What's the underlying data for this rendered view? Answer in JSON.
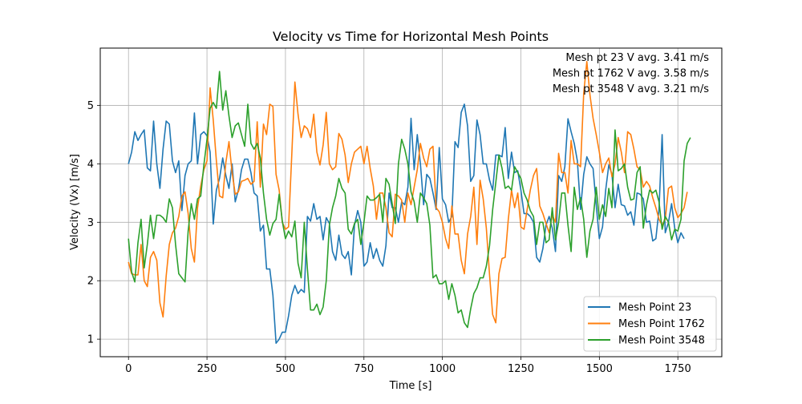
{
  "chart_data": {
    "type": "line",
    "title": "Velocity vs Time for Horizontal Mesh Points",
    "xlabel": "Time [s]",
    "ylabel": "Velocity (Vx) [m/s]",
    "xlim": [
      -90,
      1890
    ],
    "ylim": [
      0.7,
      5.98
    ],
    "xticks": [
      0,
      250,
      500,
      750,
      1000,
      1250,
      1500,
      1750
    ],
    "yticks": [
      1,
      2,
      3,
      4,
      5
    ],
    "grid": true,
    "legend_position": "lower-right",
    "annotations": [
      "Mesh pt 23 V avg. 3.41 m/s",
      "Mesh pt 1762 V avg. 3.58 m/s",
      "Mesh pt 3548 V avg. 3.21 m/s"
    ],
    "x_start": 0,
    "x_step": 10,
    "series": [
      {
        "name": "Mesh Point 23",
        "color": "#1f77b4",
        "values": [
          4.0,
          4.2,
          4.55,
          4.4,
          4.5,
          4.58,
          3.93,
          3.88,
          4.73,
          4.0,
          3.58,
          4.25,
          4.73,
          4.68,
          4.05,
          3.85,
          4.05,
          3.2,
          3.8,
          4.0,
          4.05,
          4.87,
          4.0,
          4.5,
          4.55,
          4.48,
          4.2,
          2.97,
          3.55,
          3.75,
          4.1,
          3.8,
          3.58,
          4.0,
          3.35,
          3.55,
          3.9,
          4.08,
          4.08,
          3.85,
          3.5,
          3.45,
          2.85,
          2.95,
          2.2,
          2.2,
          1.75,
          0.93,
          1.0,
          1.12,
          1.12,
          1.4,
          1.75,
          1.92,
          1.78,
          1.85,
          1.8,
          3.1,
          3.02,
          3.32,
          3.05,
          3.1,
          2.7,
          3.08,
          2.98,
          2.5,
          2.35,
          2.78,
          2.45,
          2.38,
          2.5,
          2.1,
          2.95,
          3.2,
          3.0,
          2.25,
          2.32,
          2.65,
          2.38,
          2.55,
          2.35,
          2.25,
          2.6,
          3.5,
          3.25,
          3.25,
          3.0,
          3.35,
          3.3,
          3.6,
          4.78,
          3.9,
          4.5,
          4.0,
          3.3,
          3.82,
          3.75,
          3.5,
          3.22,
          4.28,
          3.4,
          3.3,
          3.0,
          3.1,
          4.38,
          4.28,
          4.88,
          5.02,
          4.65,
          3.7,
          3.8,
          4.75,
          4.5,
          4.0,
          4.0,
          3.72,
          3.55,
          4.15,
          4.15,
          4.12,
          4.62,
          3.75,
          4.2,
          3.85,
          3.88,
          3.55,
          3.15,
          3.15,
          3.1,
          3.0,
          2.4,
          2.32,
          2.55,
          2.95,
          3.1,
          2.9,
          2.5,
          3.8,
          3.7,
          3.95,
          4.77,
          4.55,
          4.35,
          4.05,
          3.22,
          3.82,
          4.12,
          4.0,
          3.92,
          3.3,
          2.72,
          2.92,
          3.55,
          3.98,
          3.82,
          3.25,
          3.65,
          3.3,
          3.28,
          3.12,
          3.18,
          2.95,
          3.5,
          3.48,
          3.4,
          3.0,
          3.02,
          2.68,
          2.72,
          3.22,
          4.5,
          2.82,
          3.0,
          3.32,
          2.9,
          2.65,
          2.82,
          2.72
        ]
      },
      {
        "name": "Mesh Point 1762",
        "color": "#ff7f0e",
        "values": [
          2.32,
          2.12,
          2.1,
          2.1,
          2.62,
          2.0,
          1.9,
          2.4,
          2.5,
          2.35,
          1.62,
          1.38,
          2.08,
          2.62,
          2.82,
          2.9,
          3.1,
          3.45,
          3.52,
          3.15,
          2.55,
          2.32,
          3.25,
          3.62,
          3.9,
          4.05,
          5.3,
          4.75,
          4.05,
          3.45,
          3.42,
          4.02,
          4.38,
          3.85,
          3.48,
          3.52,
          3.7,
          3.72,
          3.75,
          3.65,
          3.7,
          4.72,
          3.6,
          4.68,
          4.5,
          5.02,
          4.98,
          3.82,
          3.55,
          3.0,
          2.88,
          2.92,
          4.15,
          5.4,
          4.85,
          4.45,
          4.65,
          4.6,
          4.45,
          4.85,
          4.2,
          3.98,
          4.32,
          4.88,
          4.0,
          3.9,
          3.95,
          4.52,
          4.42,
          4.15,
          3.68,
          4.0,
          4.2,
          4.25,
          4.3,
          4.0,
          4.3,
          3.92,
          3.62,
          3.05,
          3.5,
          3.5,
          3.25,
          2.82,
          2.75,
          3.48,
          3.45,
          3.38,
          3.0,
          3.5,
          3.3,
          3.6,
          3.9,
          4.35,
          4.1,
          3.95,
          4.25,
          4.3,
          3.25,
          3.18,
          3.0,
          2.72,
          2.55,
          3.28,
          2.8,
          2.8,
          2.35,
          2.12,
          2.8,
          3.1,
          3.6,
          2.62,
          3.72,
          3.4,
          2.9,
          2.1,
          1.42,
          1.28,
          2.12,
          2.38,
          2.4,
          3.05,
          3.55,
          3.25,
          3.5,
          2.92,
          2.88,
          3.22,
          3.55,
          3.8,
          3.92,
          3.28,
          3.15,
          2.98,
          2.82,
          3.12,
          3.0,
          4.18,
          3.85,
          3.85,
          3.5,
          4.4,
          4.0,
          4.0,
          3.95,
          5.2,
          5.75,
          5.18,
          4.78,
          4.5,
          4.2,
          3.85,
          4.0,
          4.1,
          3.78,
          4.0,
          4.45,
          4.2,
          3.85,
          4.55,
          4.5,
          4.25,
          3.95,
          3.9,
          3.6,
          3.7,
          3.62,
          3.42,
          3.25,
          3.05,
          2.95,
          3.05,
          3.58,
          3.62,
          3.25,
          3.08,
          3.15,
          3.25,
          3.52
        ]
      },
      {
        "name": "Mesh Point 3548",
        "color": "#2ca02c",
        "values": [
          2.72,
          2.15,
          1.98,
          2.65,
          3.05,
          2.22,
          2.62,
          3.12,
          2.72,
          3.12,
          3.12,
          3.08,
          3.0,
          3.4,
          3.25,
          2.62,
          2.12,
          2.05,
          1.98,
          2.85,
          3.32,
          3.05,
          3.4,
          3.45,
          3.98,
          4.42,
          4.95,
          5.05,
          4.95,
          5.58,
          4.92,
          5.25,
          4.82,
          4.45,
          4.65,
          4.7,
          4.5,
          4.3,
          5.02,
          4.35,
          4.25,
          4.35,
          4.1,
          3.5,
          3.05,
          2.78,
          2.98,
          3.05,
          3.48,
          3.02,
          2.72,
          2.85,
          2.75,
          3.02,
          2.3,
          2.05,
          3.0,
          2.2,
          1.5,
          1.5,
          1.6,
          1.42,
          1.55,
          2.0,
          2.95,
          3.25,
          3.45,
          3.75,
          3.58,
          3.5,
          2.88,
          2.8,
          2.98,
          3.05,
          2.62,
          3.0,
          3.45,
          3.38,
          3.38,
          3.42,
          3.48,
          3.0,
          3.75,
          3.65,
          3.32,
          2.98,
          4.0,
          4.42,
          4.25,
          4.0,
          3.52,
          3.35,
          3.0,
          3.5,
          3.42,
          3.32,
          2.95,
          2.05,
          2.1,
          1.95,
          1.95,
          2.0,
          1.68,
          1.95,
          1.75,
          1.45,
          1.5,
          1.28,
          1.2,
          1.52,
          1.78,
          1.88,
          2.05,
          2.05,
          2.25,
          2.6,
          3.22,
          3.68,
          4.15,
          3.92,
          3.58,
          3.62,
          3.55,
          3.95,
          3.85,
          3.75,
          3.5,
          3.38,
          3.2,
          3.1,
          2.62,
          3.0,
          3.0,
          2.65,
          2.7,
          3.25,
          2.7,
          3.0,
          3.5,
          3.5,
          2.95,
          2.5,
          3.6,
          3.22,
          3.42,
          3.05,
          2.4,
          2.85,
          3.05,
          3.6,
          3.05,
          3.3,
          3.1,
          3.58,
          3.25,
          4.58,
          3.88,
          3.92,
          4.0,
          3.6,
          3.38,
          3.4,
          3.85,
          3.95,
          2.9,
          3.3,
          3.55,
          3.5,
          3.55,
          3.35,
          2.88,
          3.1,
          3.0,
          2.7,
          2.88,
          2.85,
          3.05,
          4.05,
          4.35,
          4.45
        ]
      }
    ]
  }
}
